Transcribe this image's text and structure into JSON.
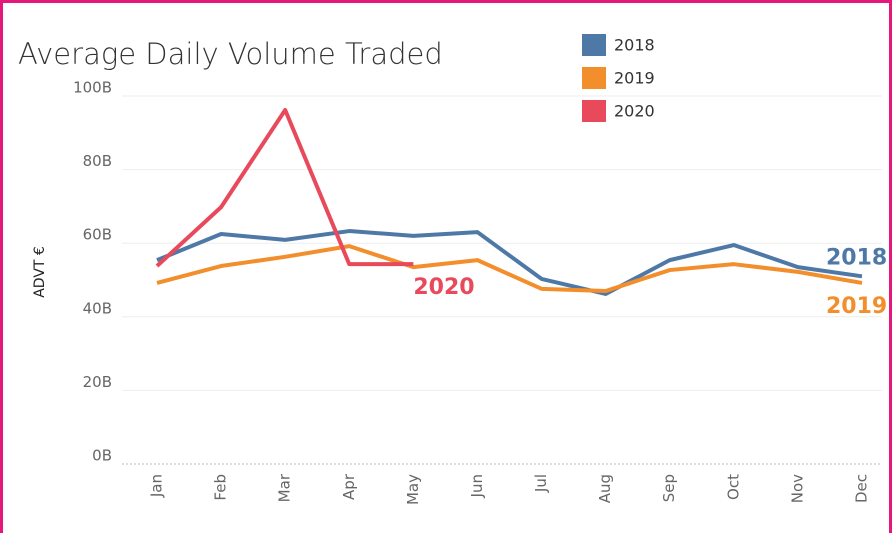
{
  "chart_data": {
    "type": "line",
    "title": "Average Daily Volume Traded",
    "y_label": "ADVT €",
    "categories": [
      "Jan",
      "Feb",
      "Mar",
      "Apr",
      "May",
      "Jun",
      "Jul",
      "Aug",
      "Sep",
      "Oct",
      "Nov",
      "Dec"
    ],
    "series": [
      {
        "name": "2018",
        "color": "#4e79a7",
        "values": [
          55.4,
          62.5,
          60.9,
          63.3,
          62,
          63,
          50.3,
          46.2,
          55.4,
          59.5,
          53.5,
          51
        ]
      },
      {
        "name": "2019",
        "color": "#f28e2b",
        "values": [
          49.2,
          53.8,
          56.3,
          59.2,
          53.5,
          55.4,
          47.6,
          47,
          52.7,
          54.3,
          52.2,
          49.2
        ]
      },
      {
        "name": "2020",
        "color": "#e8495b",
        "values": [
          53.8,
          69.8,
          96.2,
          54.3,
          54.3,
          null,
          null,
          null,
          null,
          null,
          null,
          null
        ]
      }
    ],
    "ylim": [
      0,
      100
    ],
    "yticks": [
      {
        "value": 0,
        "label": "0B"
      },
      {
        "value": 20,
        "label": "20B"
      },
      {
        "value": 40,
        "label": "40B"
      },
      {
        "value": 60,
        "label": "60B"
      },
      {
        "value": 80,
        "label": "80B"
      },
      {
        "value": 100,
        "label": "100B"
      }
    ],
    "grid": true
  }
}
